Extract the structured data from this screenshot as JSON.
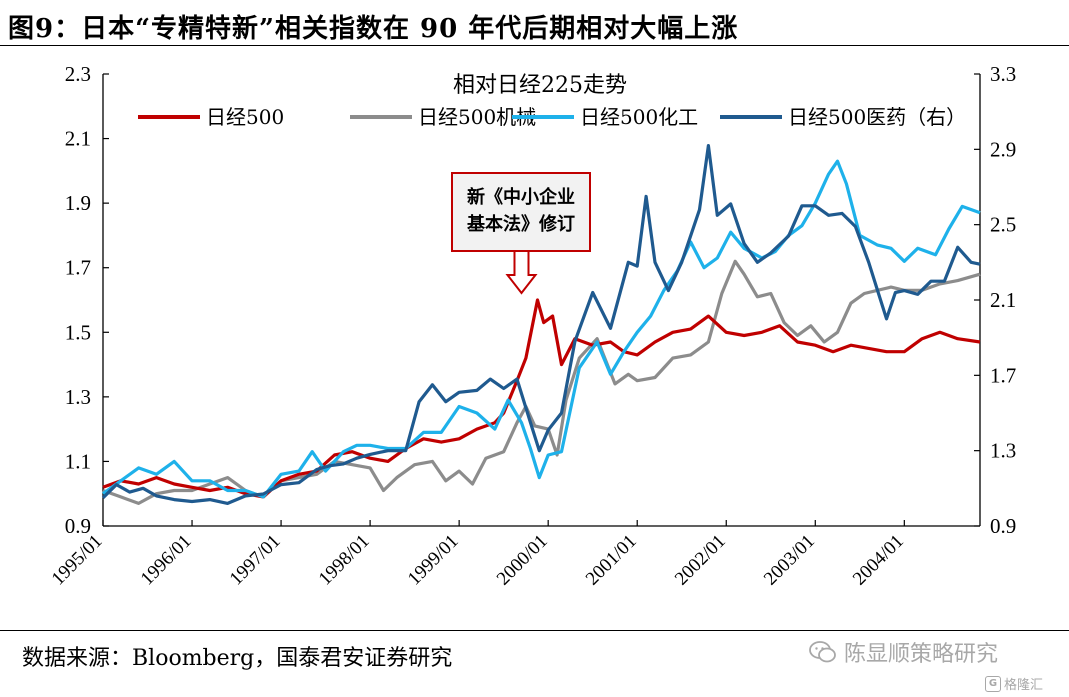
{
  "figure_title": "图9：日本“专精特新”相关指数在 90 年代后期相对大幅上涨",
  "source": "数据来源：Bloomberg，国泰君安证券研究",
  "watermark": "陈显顺策略研究",
  "watermark_small": "格隆汇",
  "colors": {
    "n500": "#c00000",
    "mach": "#8c8c8c",
    "chem": "#1eb1ea",
    "pharma": "#1f5a8f",
    "annotation_border": "#c00000",
    "annotation_fill": "#f2f2f2"
  },
  "chart_data": {
    "type": "line",
    "title": "相对日经225走势",
    "annotation": {
      "lines": [
        "新《中小企业",
        "基本法》修订"
      ],
      "x": 1999.88,
      "y": 1.6
    },
    "x_ticks": [
      {
        "label": "1995/01",
        "x": 1995.0
      },
      {
        "label": "1996/01",
        "x": 1996.0
      },
      {
        "label": "1997/01",
        "x": 1997.0
      },
      {
        "label": "1998/01",
        "x": 1998.0
      },
      {
        "label": "1999/01",
        "x": 1999.0
      },
      {
        "label": "2000/01",
        "x": 2000.0
      },
      {
        "label": "2001/01",
        "x": 2001.0
      },
      {
        "label": "2002/01",
        "x": 2002.0
      },
      {
        "label": "2003/01",
        "x": 2003.0
      },
      {
        "label": "2004/01",
        "x": 2004.0
      }
    ],
    "xlim": [
      1995.0,
      2004.85
    ],
    "y_left": {
      "lim": [
        0.9,
        2.3
      ],
      "ticks": [
        "0.9",
        "1.1",
        "1.3",
        "1.5",
        "1.7",
        "1.9",
        "2.1",
        "2.3"
      ]
    },
    "y_right": {
      "lim": [
        0.9,
        3.3
      ],
      "ticks": [
        "0.9",
        "1.3",
        "1.7",
        "2.1",
        "2.5",
        "2.9",
        "3.3"
      ]
    },
    "legend_position": "top",
    "series": [
      {
        "name": "日经500",
        "key": "n500",
        "axis": "left",
        "points": [
          [
            1995.0,
            1.02
          ],
          [
            1995.2,
            1.04
          ],
          [
            1995.4,
            1.03
          ],
          [
            1995.6,
            1.05
          ],
          [
            1995.8,
            1.03
          ],
          [
            1996.0,
            1.02
          ],
          [
            1996.2,
            1.01
          ],
          [
            1996.4,
            1.02
          ],
          [
            1996.6,
            1.0
          ],
          [
            1996.8,
            0.99
          ],
          [
            1997.0,
            1.04
          ],
          [
            1997.2,
            1.06
          ],
          [
            1997.4,
            1.07
          ],
          [
            1997.6,
            1.12
          ],
          [
            1997.8,
            1.13
          ],
          [
            1998.0,
            1.11
          ],
          [
            1998.2,
            1.1
          ],
          [
            1998.4,
            1.14
          ],
          [
            1998.6,
            1.17
          ],
          [
            1998.8,
            1.16
          ],
          [
            1999.0,
            1.17
          ],
          [
            1999.2,
            1.2
          ],
          [
            1999.4,
            1.22
          ],
          [
            1999.5,
            1.25
          ],
          [
            1999.65,
            1.35
          ],
          [
            1999.75,
            1.42
          ],
          [
            1999.88,
            1.6
          ],
          [
            1999.95,
            1.53
          ],
          [
            2000.05,
            1.55
          ],
          [
            2000.15,
            1.4
          ],
          [
            2000.3,
            1.48
          ],
          [
            2000.5,
            1.46
          ],
          [
            2000.7,
            1.47
          ],
          [
            2000.85,
            1.44
          ],
          [
            2001.0,
            1.43
          ],
          [
            2001.2,
            1.47
          ],
          [
            2001.4,
            1.5
          ],
          [
            2001.6,
            1.51
          ],
          [
            2001.8,
            1.55
          ],
          [
            2002.0,
            1.5
          ],
          [
            2002.2,
            1.49
          ],
          [
            2002.4,
            1.5
          ],
          [
            2002.6,
            1.52
          ],
          [
            2002.8,
            1.47
          ],
          [
            2003.0,
            1.46
          ],
          [
            2003.2,
            1.44
          ],
          [
            2003.4,
            1.46
          ],
          [
            2003.6,
            1.45
          ],
          [
            2003.8,
            1.44
          ],
          [
            2004.0,
            1.44
          ],
          [
            2004.2,
            1.48
          ],
          [
            2004.4,
            1.5
          ],
          [
            2004.6,
            1.48
          ],
          [
            2004.85,
            1.47
          ]
        ]
      },
      {
        "name": "日经500机械",
        "key": "mach",
        "axis": "left",
        "points": [
          [
            1995.0,
            1.01
          ],
          [
            1995.2,
            0.99
          ],
          [
            1995.4,
            0.97
          ],
          [
            1995.6,
            1.0
          ],
          [
            1995.8,
            1.01
          ],
          [
            1996.0,
            1.01
          ],
          [
            1996.2,
            1.03
          ],
          [
            1996.4,
            1.05
          ],
          [
            1996.6,
            1.01
          ],
          [
            1996.8,
            0.99
          ],
          [
            1997.0,
            1.04
          ],
          [
            1997.2,
            1.05
          ],
          [
            1997.4,
            1.06
          ],
          [
            1997.6,
            1.1
          ],
          [
            1997.8,
            1.09
          ],
          [
            1998.0,
            1.08
          ],
          [
            1998.15,
            1.01
          ],
          [
            1998.3,
            1.05
          ],
          [
            1998.5,
            1.09
          ],
          [
            1998.7,
            1.1
          ],
          [
            1998.85,
            1.04
          ],
          [
            1999.0,
            1.07
          ],
          [
            1999.15,
            1.03
          ],
          [
            1999.3,
            1.11
          ],
          [
            1999.5,
            1.13
          ],
          [
            1999.65,
            1.22
          ],
          [
            1999.75,
            1.27
          ],
          [
            1999.85,
            1.21
          ],
          [
            2000.0,
            1.2
          ],
          [
            2000.1,
            1.12
          ],
          [
            2000.2,
            1.29
          ],
          [
            2000.35,
            1.42
          ],
          [
            2000.55,
            1.48
          ],
          [
            2000.75,
            1.34
          ],
          [
            2000.9,
            1.37
          ],
          [
            2001.0,
            1.35
          ],
          [
            2001.2,
            1.36
          ],
          [
            2001.4,
            1.42
          ],
          [
            2001.6,
            1.43
          ],
          [
            2001.8,
            1.47
          ],
          [
            2001.95,
            1.62
          ],
          [
            2002.1,
            1.72
          ],
          [
            2002.2,
            1.68
          ],
          [
            2002.35,
            1.61
          ],
          [
            2002.5,
            1.62
          ],
          [
            2002.65,
            1.53
          ],
          [
            2002.8,
            1.49
          ],
          [
            2002.95,
            1.52
          ],
          [
            2003.1,
            1.47
          ],
          [
            2003.25,
            1.5
          ],
          [
            2003.4,
            1.59
          ],
          [
            2003.55,
            1.62
          ],
          [
            2003.7,
            1.63
          ],
          [
            2003.85,
            1.64
          ],
          [
            2004.0,
            1.63
          ],
          [
            2004.2,
            1.63
          ],
          [
            2004.4,
            1.65
          ],
          [
            2004.6,
            1.66
          ],
          [
            2004.85,
            1.68
          ]
        ]
      },
      {
        "name": "日经500化工",
        "key": "chem",
        "axis": "left",
        "points": [
          [
            1995.0,
            1.0
          ],
          [
            1995.2,
            1.04
          ],
          [
            1995.4,
            1.08
          ],
          [
            1995.6,
            1.06
          ],
          [
            1995.8,
            1.1
          ],
          [
            1996.0,
            1.04
          ],
          [
            1996.2,
            1.04
          ],
          [
            1996.4,
            1.01
          ],
          [
            1996.6,
            1.01
          ],
          [
            1996.8,
            0.99
          ],
          [
            1997.0,
            1.06
          ],
          [
            1997.2,
            1.07
          ],
          [
            1997.35,
            1.13
          ],
          [
            1997.5,
            1.07
          ],
          [
            1997.7,
            1.13
          ],
          [
            1997.85,
            1.15
          ],
          [
            1998.0,
            1.15
          ],
          [
            1998.2,
            1.14
          ],
          [
            1998.4,
            1.14
          ],
          [
            1998.6,
            1.19
          ],
          [
            1998.8,
            1.19
          ],
          [
            1999.0,
            1.27
          ],
          [
            1999.2,
            1.25
          ],
          [
            1999.4,
            1.2
          ],
          [
            1999.55,
            1.29
          ],
          [
            1999.7,
            1.22
          ],
          [
            1999.8,
            1.14
          ],
          [
            1999.9,
            1.05
          ],
          [
            2000.0,
            1.12
          ],
          [
            2000.15,
            1.13
          ],
          [
            2000.35,
            1.39
          ],
          [
            2000.55,
            1.47
          ],
          [
            2000.7,
            1.37
          ],
          [
            2000.85,
            1.44
          ],
          [
            2001.0,
            1.5
          ],
          [
            2001.15,
            1.55
          ],
          [
            2001.3,
            1.63
          ],
          [
            2001.45,
            1.69
          ],
          [
            2001.6,
            1.78
          ],
          [
            2001.75,
            1.7
          ],
          [
            2001.9,
            1.73
          ],
          [
            2002.05,
            1.81
          ],
          [
            2002.2,
            1.76
          ],
          [
            2002.4,
            1.73
          ],
          [
            2002.55,
            1.75
          ],
          [
            2002.7,
            1.8
          ],
          [
            2002.85,
            1.83
          ],
          [
            2003.0,
            1.9
          ],
          [
            2003.15,
            1.99
          ],
          [
            2003.25,
            2.03
          ],
          [
            2003.35,
            1.96
          ],
          [
            2003.5,
            1.8
          ],
          [
            2003.7,
            1.77
          ],
          [
            2003.85,
            1.76
          ],
          [
            2004.0,
            1.72
          ],
          [
            2004.15,
            1.76
          ],
          [
            2004.35,
            1.74
          ],
          [
            2004.5,
            1.82
          ],
          [
            2004.65,
            1.89
          ],
          [
            2004.85,
            1.87
          ]
        ]
      },
      {
        "name": "日经500医药（右）",
        "key": "pharma",
        "axis": "right",
        "points": [
          [
            1995.0,
            1.05
          ],
          [
            1995.15,
            1.12
          ],
          [
            1995.3,
            1.08
          ],
          [
            1995.45,
            1.1
          ],
          [
            1995.6,
            1.06
          ],
          [
            1995.8,
            1.04
          ],
          [
            1996.0,
            1.03
          ],
          [
            1996.2,
            1.04
          ],
          [
            1996.4,
            1.02
          ],
          [
            1996.6,
            1.06
          ],
          [
            1996.8,
            1.07
          ],
          [
            1997.0,
            1.12
          ],
          [
            1997.2,
            1.13
          ],
          [
            1997.4,
            1.2
          ],
          [
            1997.55,
            1.22
          ],
          [
            1997.7,
            1.23
          ],
          [
            1997.85,
            1.26
          ],
          [
            1998.0,
            1.28
          ],
          [
            1998.2,
            1.3
          ],
          [
            1998.4,
            1.3
          ],
          [
            1998.55,
            1.56
          ],
          [
            1998.7,
            1.65
          ],
          [
            1998.85,
            1.56
          ],
          [
            1999.0,
            1.61
          ],
          [
            1999.2,
            1.62
          ],
          [
            1999.35,
            1.68
          ],
          [
            1999.5,
            1.63
          ],
          [
            1999.65,
            1.68
          ],
          [
            1999.8,
            1.45
          ],
          [
            1999.9,
            1.3
          ],
          [
            2000.0,
            1.41
          ],
          [
            2000.15,
            1.5
          ],
          [
            2000.3,
            1.88
          ],
          [
            2000.5,
            2.14
          ],
          [
            2000.7,
            1.95
          ],
          [
            2000.9,
            2.3
          ],
          [
            2001.0,
            2.28
          ],
          [
            2001.1,
            2.65
          ],
          [
            2001.2,
            2.3
          ],
          [
            2001.35,
            2.15
          ],
          [
            2001.5,
            2.3
          ],
          [
            2001.7,
            2.58
          ],
          [
            2001.8,
            2.92
          ],
          [
            2001.9,
            2.55
          ],
          [
            2002.05,
            2.61
          ],
          [
            2002.2,
            2.4
          ],
          [
            2002.35,
            2.3
          ],
          [
            2002.5,
            2.35
          ],
          [
            2002.7,
            2.44
          ],
          [
            2002.85,
            2.6
          ],
          [
            2003.0,
            2.6
          ],
          [
            2003.15,
            2.55
          ],
          [
            2003.3,
            2.56
          ],
          [
            2003.45,
            2.49
          ],
          [
            2003.6,
            2.3
          ],
          [
            2003.7,
            2.15
          ],
          [
            2003.8,
            2.0
          ],
          [
            2003.9,
            2.14
          ],
          [
            2004.0,
            2.15
          ],
          [
            2004.15,
            2.13
          ],
          [
            2004.3,
            2.2
          ],
          [
            2004.45,
            2.2
          ],
          [
            2004.6,
            2.38
          ],
          [
            2004.75,
            2.3
          ],
          [
            2004.85,
            2.29
          ]
        ]
      }
    ]
  }
}
